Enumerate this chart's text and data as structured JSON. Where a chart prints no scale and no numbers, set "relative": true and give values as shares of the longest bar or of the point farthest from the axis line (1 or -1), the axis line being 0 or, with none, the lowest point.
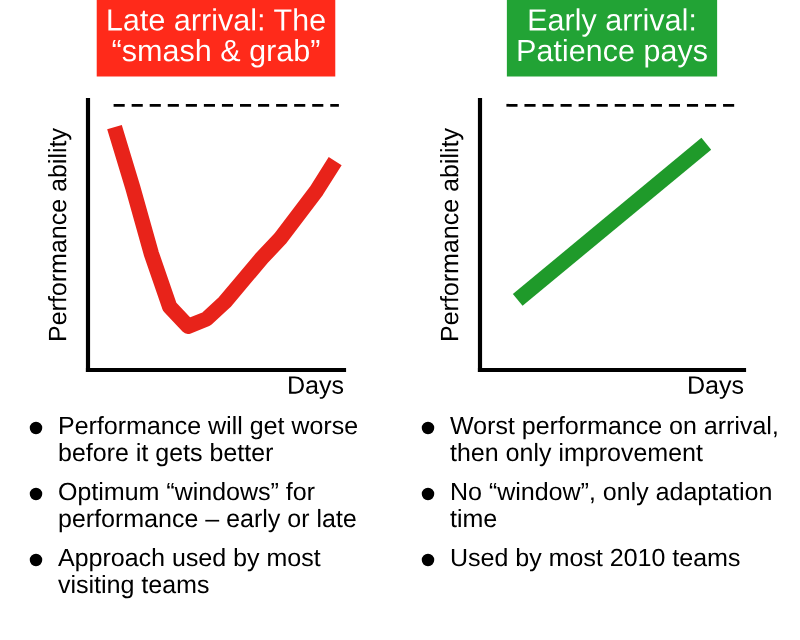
{
  "chart_data": [
    {
      "type": "line",
      "title": "Late arrival: The\n“smash & grab”",
      "xlabel": "Days",
      "ylabel": "Performance ability",
      "relative": true,
      "categories": [
        null,
        null,
        null,
        null,
        null,
        null,
        null,
        null,
        null,
        null,
        null,
        null,
        null
      ],
      "series": [
        {
          "color": "#e8231a",
          "values": [
            1,
            0.75,
            0.48,
            0.26,
            0.18,
            0.21,
            0.28,
            0.37,
            0.46,
            0.54,
            0.64,
            0.74,
            0.86
          ]
        }
      ],
      "ref_lines": [
        {
          "axis": "y",
          "value": 1.09,
          "color": "#000000",
          "line_style": "dashed"
        }
      ],
      "annotations": [
        "Performance will get worse\nbefore it gets better",
        "Optimum “windows” for\nperformance – early or late",
        "Approach used by most\nvisiting teams"
      ]
    },
    {
      "type": "line",
      "title": "Early arrival:\nPatience pays",
      "xlabel": "Days",
      "ylabel": "Performance ability",
      "relative": true,
      "categories": [
        null,
        null
      ],
      "series": [
        {
          "color": "#1f9a2a",
          "values": [
            0.31,
            1
          ]
        }
      ],
      "ref_lines": [
        {
          "axis": "y",
          "value": 1.17,
          "color": "#000000",
          "line_style": "dashed"
        }
      ],
      "annotations": [
        "Worst performance on arrival,\nthen only improvement",
        "No “window”, only adaptation\ntime",
        "Used by most 2010 teams"
      ]
    }
  ]
}
